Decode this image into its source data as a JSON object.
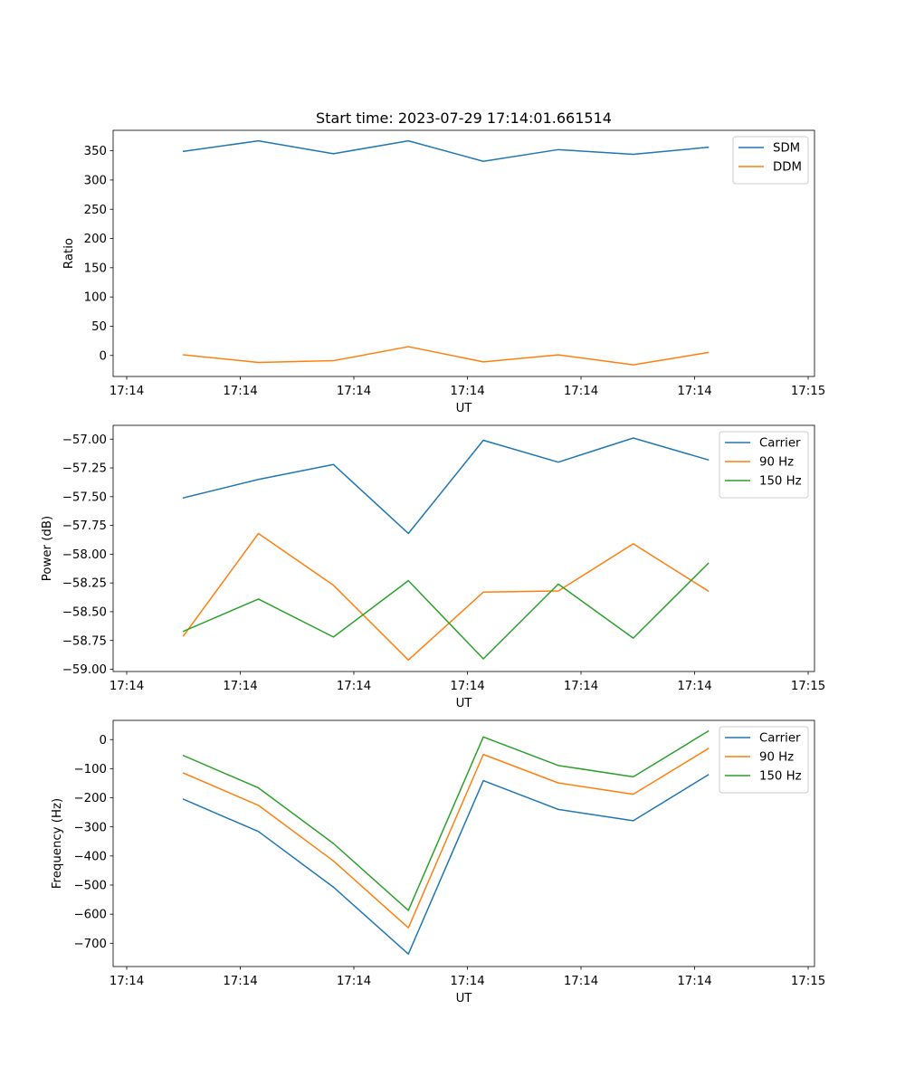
{
  "figure_title": "Start time: 2023-07-29 17:14:01.661514",
  "x_tick_labels": [
    "17:14",
    "17:14",
    "17:14",
    "17:14",
    "17:14",
    "17:14",
    "17:15"
  ],
  "chart_data": [
    {
      "type": "line",
      "title": "Start time: 2023-07-29 17:14:01.661514",
      "xlabel": "UT",
      "ylabel": "Ratio",
      "x": [
        0.5,
        1.16,
        1.82,
        2.48,
        3.14,
        3.8,
        4.46,
        5.12
      ],
      "xlim": [
        0,
        6
      ],
      "ylim": [
        -36,
        385
      ],
      "yticks": [
        0,
        50,
        100,
        150,
        200,
        250,
        300,
        350
      ],
      "ytick_labels": [
        "0",
        "50",
        "100",
        "150",
        "200",
        "250",
        "300",
        "350"
      ],
      "legend_position": "upper-right",
      "series": [
        {
          "name": "SDM",
          "color": "#1f77b4",
          "values": [
            349,
            367,
            345,
            367,
            332,
            352,
            344,
            356
          ]
        },
        {
          "name": "DDM",
          "color": "#ff7f0e",
          "values": [
            1,
            -12,
            -9,
            15,
            -11,
            1,
            -16,
            5
          ]
        }
      ]
    },
    {
      "type": "line",
      "title": "",
      "xlabel": "UT",
      "ylabel": "Power (dB)",
      "x": [
        0.5,
        1.16,
        1.82,
        2.48,
        3.14,
        3.8,
        4.46,
        5.12
      ],
      "xlim": [
        0,
        6
      ],
      "ylim": [
        -59.02,
        -56.88
      ],
      "yticks": [
        -59.0,
        -58.75,
        -58.5,
        -58.25,
        -58.0,
        -57.75,
        -57.5,
        -57.25,
        -57.0
      ],
      "ytick_labels": [
        "−59.00",
        "−58.75",
        "−58.50",
        "−58.25",
        "−58.00",
        "−57.75",
        "−57.50",
        "−57.25",
        "−57.00"
      ],
      "legend_position": "upper-right",
      "series": [
        {
          "name": "Carrier",
          "color": "#1f77b4",
          "values": [
            -57.51,
            -57.35,
            -57.22,
            -57.82,
            -57.01,
            -57.2,
            -56.99,
            -57.18
          ]
        },
        {
          "name": "90 Hz",
          "color": "#ff7f0e",
          "values": [
            -58.71,
            -57.82,
            -58.27,
            -58.92,
            -58.33,
            -58.32,
            -57.91,
            -58.32
          ]
        },
        {
          "name": "150 Hz",
          "color": "#2ca02c",
          "values": [
            -58.67,
            -58.39,
            -58.72,
            -58.23,
            -58.91,
            -58.26,
            -58.73,
            -58.08
          ]
        }
      ]
    },
    {
      "type": "line",
      "title": "",
      "xlabel": "UT",
      "ylabel": "Frequency (Hz)",
      "x": [
        0.5,
        1.16,
        1.82,
        2.48,
        3.14,
        3.8,
        4.46,
        5.12
      ],
      "xlim": [
        0,
        6
      ],
      "ylim": [
        -780,
        66
      ],
      "yticks": [
        -700,
        -600,
        -500,
        -400,
        -300,
        -200,
        -100,
        0
      ],
      "ytick_labels": [
        "−700",
        "−600",
        "−500",
        "−400",
        "−300",
        "−200",
        "−100",
        "0"
      ],
      "legend_position": "upper-right",
      "series": [
        {
          "name": "Carrier",
          "color": "#1f77b4",
          "values": [
            -205,
            -316,
            -507,
            -737,
            -141,
            -240,
            -279,
            -121
          ]
        },
        {
          "name": "90 Hz",
          "color": "#ff7f0e",
          "values": [
            -115,
            -226,
            -417,
            -647,
            -51,
            -149,
            -188,
            -31
          ]
        },
        {
          "name": "150 Hz",
          "color": "#2ca02c",
          "values": [
            -55,
            -166,
            -357,
            -587,
            9,
            -89,
            -128,
            29
          ]
        }
      ]
    }
  ]
}
